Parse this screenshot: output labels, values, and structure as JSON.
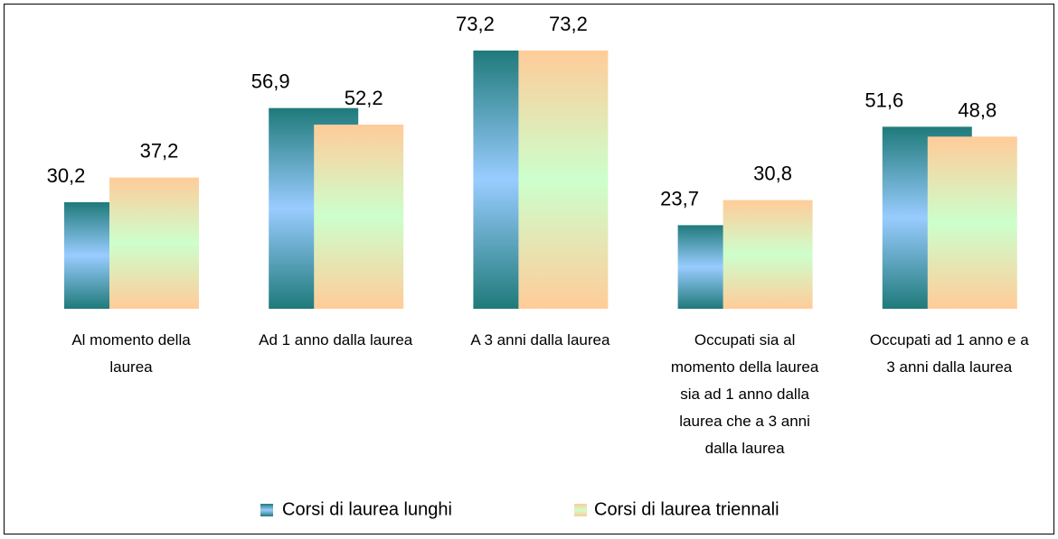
{
  "chart_data": {
    "type": "bar",
    "categories": [
      "Al momento della laurea",
      "Ad 1 anno dalla laurea",
      "A 3 anni dalla laurea",
      "Occupati sia al momento della laurea sia ad 1 anno dalla laurea che a 3 anni dalla laurea",
      "Occupati ad 1 anno e a 3 anni dalla laurea"
    ],
    "series": [
      {
        "name": "Corsi di laurea lunghi",
        "color": "#1f7a7a",
        "values": [
          30.2,
          56.9,
          73.2,
          23.7,
          51.6
        ],
        "value_labels": [
          "30,2",
          "56,9",
          "73,2",
          "23,7",
          "51,6"
        ]
      },
      {
        "name": "Corsi di laurea triennali",
        "color": "#ffcc99",
        "values": [
          37.2,
          52.2,
          73.2,
          30.8,
          48.8
        ],
        "value_labels": [
          "37,2",
          "52,2",
          "73,2",
          "30,8",
          "48,8"
        ]
      }
    ],
    "legend": "bottom"
  }
}
